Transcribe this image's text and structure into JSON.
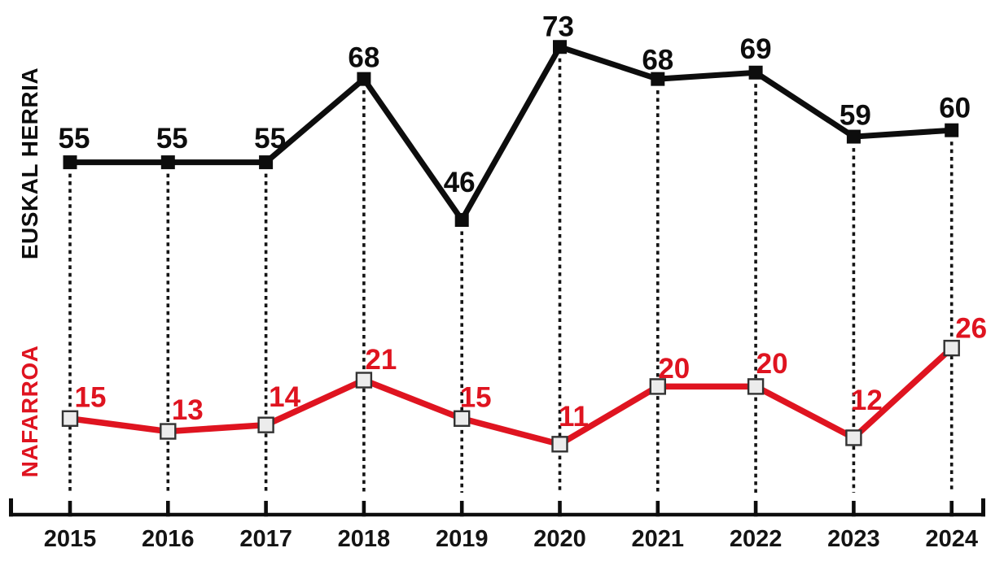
{
  "chart_data": {
    "type": "line",
    "categories": [
      "2015",
      "2016",
      "2017",
      "2018",
      "2019",
      "2020",
      "2021",
      "2022",
      "2023",
      "2024"
    ],
    "series": [
      {
        "name": "EUSKAL HERRIA",
        "color": "#0d0d0d",
        "marker": "filled-square",
        "marker_fill": "#0d0d0d",
        "marker_stroke": "#0d0d0d",
        "values": [
          55,
          55,
          55,
          68,
          46,
          73,
          68,
          69,
          59,
          60
        ],
        "label_dx": [
          5,
          5,
          5,
          0,
          -3,
          -2,
          0,
          0,
          2,
          4
        ],
        "label_dy": [
          -30,
          -30,
          -30,
          -27,
          -47,
          -26,
          -24,
          -30,
          -27,
          -28
        ]
      },
      {
        "name": "NAFARROA",
        "color": "#df1420",
        "marker": "open-square",
        "marker_fill": "#ececec",
        "marker_stroke": "#333333",
        "values": [
          15,
          13,
          14,
          21,
          15,
          11,
          20,
          20,
          12,
          26
        ],
        "label_dx": [
          25,
          24,
          23,
          21,
          17,
          17,
          20,
          20,
          16,
          24
        ],
        "label_dy": [
          -27,
          -27,
          -35,
          -26,
          -27,
          -35,
          -23,
          -29,
          -47,
          -25
        ]
      }
    ],
    "title": "",
    "xlabel": "",
    "ylabel": "",
    "ylim": [
      0,
      80
    ],
    "grid": "vertical-dotted-per-year",
    "legend_position": "rotated-labels-left"
  }
}
